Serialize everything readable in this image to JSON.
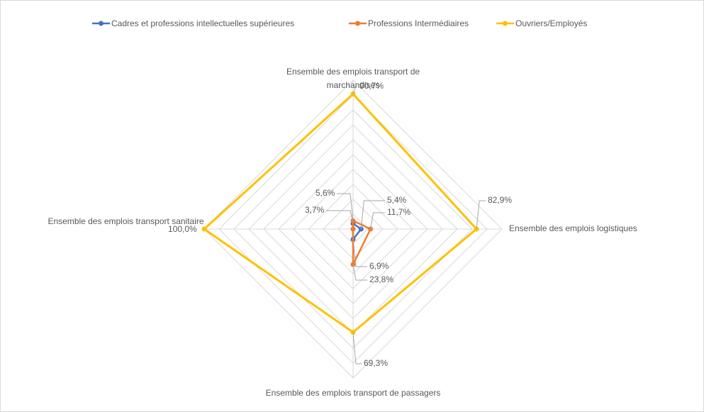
{
  "chart_data": {
    "type": "radar",
    "categories": [
      "Ensemble des emplois transport de marchandises",
      "Ensemble des emplois logistiques",
      "Ensemble des emplois transport de passagers",
      "Ensemble des emplois transport sanitaire"
    ],
    "series": [
      {
        "name": "Cadres et professions intellectuelles supérieures",
        "color": "#4472c4",
        "values": [
          3.7,
          5.4,
          6.9,
          0
        ],
        "value_labels": [
          "3,7%",
          "5,4%",
          "6,9%",
          null
        ]
      },
      {
        "name": "Professions Intermédiaires",
        "color": "#ed7d31",
        "values": [
          5.6,
          11.7,
          23.8,
          0
        ],
        "value_labels": [
          "5,6%",
          "11,7%",
          "23,8%",
          null
        ]
      },
      {
        "name": "Ouvriers/Employés",
        "color": "#ffc000",
        "values": [
          90.7,
          82.9,
          69.3,
          100
        ],
        "value_labels": [
          "90,7%",
          "82,9%",
          "69,3%",
          "100,0%"
        ]
      }
    ],
    "rlim": [
      0,
      100
    ],
    "rticks": [
      0,
      10,
      20,
      30,
      40,
      50,
      60,
      70,
      80,
      90,
      100
    ],
    "grid": true,
    "legend": "top"
  }
}
